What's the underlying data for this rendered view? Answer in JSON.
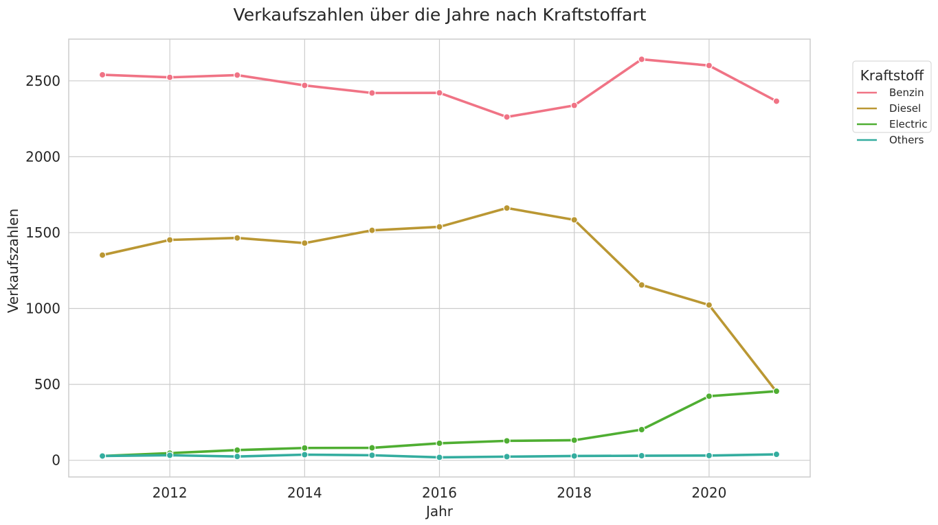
{
  "chart_data": {
    "type": "line",
    "title": "Verkaufszahlen über die Jahre nach Kraftstoffart",
    "xlabel": "Jahr",
    "ylabel": "Verkaufszahlen",
    "x": [
      2011,
      2012,
      2013,
      2014,
      2015,
      2016,
      2017,
      2018,
      2019,
      2020,
      2021
    ],
    "xlim": [
      2010.5,
      2021.5
    ],
    "ylim": [
      -110,
      2775
    ],
    "xticks": [
      2012,
      2014,
      2016,
      2018,
      2020
    ],
    "xtick_labels": [
      "2012",
      "2014",
      "2016",
      "2018",
      "2020"
    ],
    "yticks": [
      0,
      500,
      1000,
      1500,
      2000,
      2500
    ],
    "ytick_labels": [
      "0",
      "500",
      "1000",
      "1500",
      "2000",
      "2500"
    ],
    "grid": true,
    "legend": {
      "title": "Kraftstoff",
      "placement": "outside-top-right"
    },
    "series": [
      {
        "name": "Benzin",
        "color": "#f07385",
        "values": [
          2540,
          2523,
          2538,
          2470,
          2420,
          2421,
          2262,
          2338,
          2642,
          2601,
          2366
        ]
      },
      {
        "name": "Diesel",
        "color": "#ba9733",
        "values": [
          1352,
          1452,
          1465,
          1431,
          1515,
          1538,
          1662,
          1584,
          1155,
          1023,
          452
        ]
      },
      {
        "name": "Electric",
        "color": "#4fae32",
        "values": [
          28,
          47,
          67,
          81,
          82,
          112,
          128,
          132,
          202,
          422,
          455
        ]
      },
      {
        "name": "Others",
        "color": "#34ad9f",
        "values": [
          28,
          33,
          25,
          37,
          33,
          19,
          24,
          28,
          30,
          31,
          39
        ]
      }
    ]
  }
}
